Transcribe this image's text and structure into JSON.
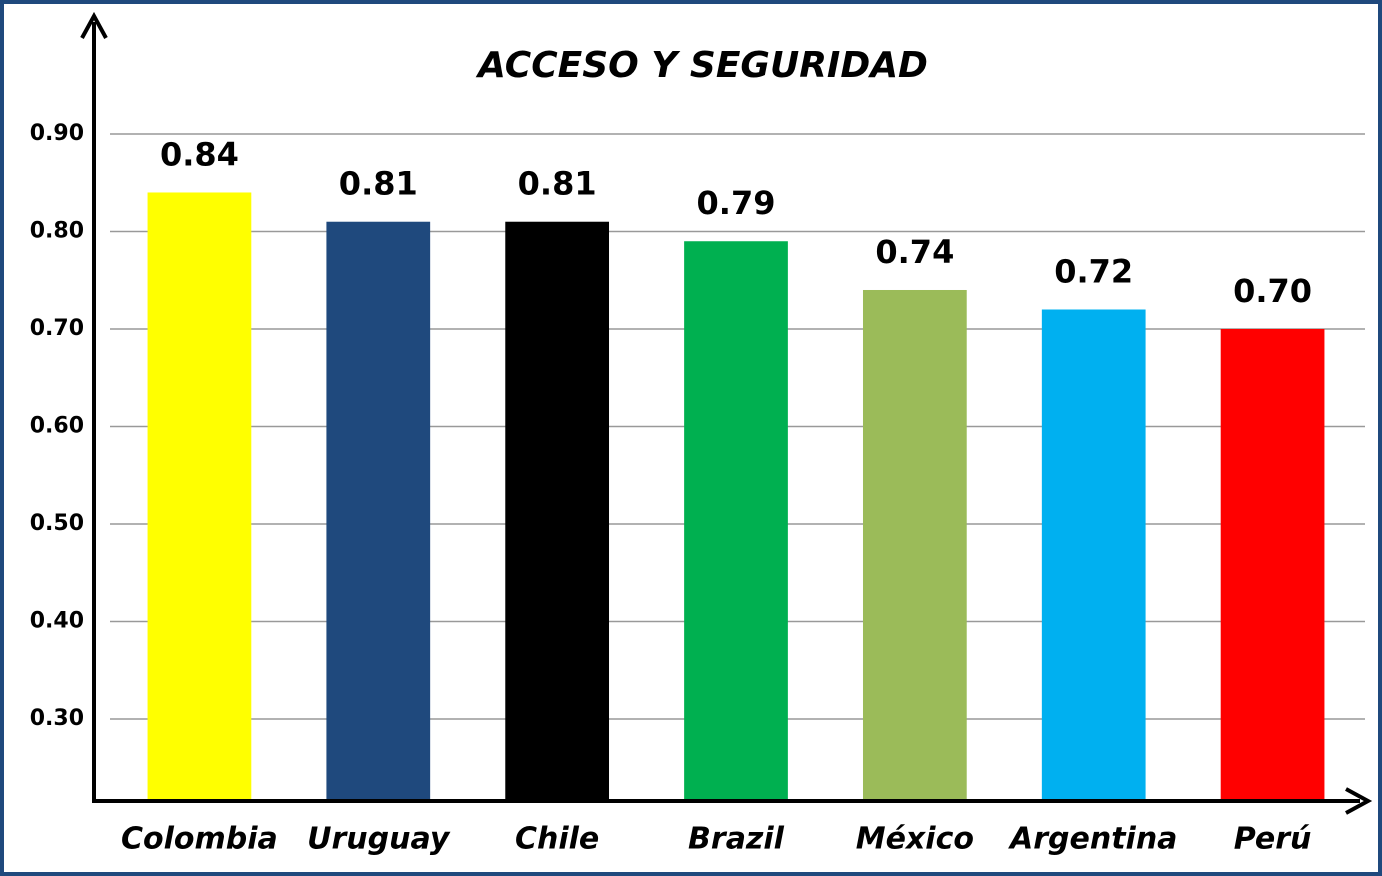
{
  "chart_data": {
    "type": "bar",
    "title": "ACCESO Y SEGURIDAD",
    "categories": [
      "Colombia",
      "Uruguay",
      "Chile",
      "Brazil",
      "México",
      "Argentina",
      "Perú"
    ],
    "values": [
      0.84,
      0.81,
      0.81,
      0.79,
      0.74,
      0.72,
      0.7
    ],
    "value_labels": [
      "0.84",
      "0.81",
      "0.81",
      "0.79",
      "0.74",
      "0.72",
      "0.70"
    ],
    "colors": [
      "#ffff00",
      "#1f497d",
      "#000000",
      "#00b050",
      "#9bbb59",
      "#00b0f0",
      "#ff0000"
    ],
    "ylim": [
      0.217,
      1.022
    ],
    "yticks": [
      {
        "value": 0.3,
        "label": "0.30"
      },
      {
        "value": 0.4,
        "label": "0.40"
      },
      {
        "value": 0.5,
        "label": "0.50"
      },
      {
        "value": 0.6,
        "label": "0.60"
      },
      {
        "value": 0.7,
        "label": "0.70"
      },
      {
        "value": 0.8,
        "label": "0.80"
      },
      {
        "value": 0.9,
        "label": "0.90"
      }
    ],
    "grid": true
  }
}
